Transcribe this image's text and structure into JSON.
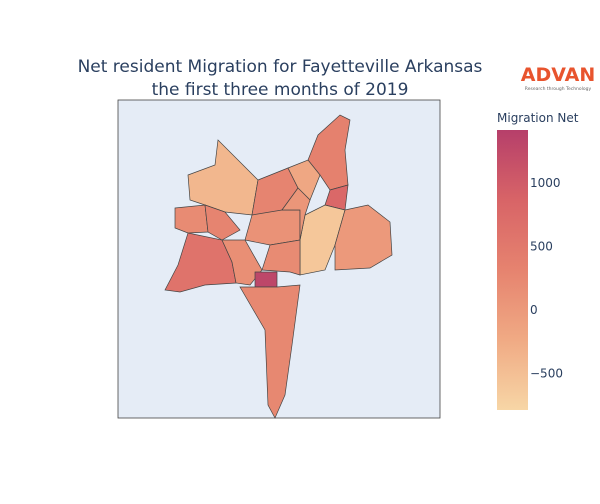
{
  "chart_data": {
    "type": "choropleth",
    "title_lines": [
      "Net resident Migration for Fayetteville Arkansas",
      "the first three months of 2019"
    ],
    "logo": {
      "name": "ADVAN",
      "tagline": "Research through Technology"
    },
    "colorbar": {
      "title": "Migration Net",
      "zlim": [
        -790,
        1420
      ],
      "ticks": [
        {
          "value": -500,
          "label": "−500"
        },
        0,
        500,
        1000
      ],
      "colorscale": [
        "#f7d6a6",
        "#f0aa84",
        "#e6836f",
        "#d86467",
        "#b63f6a"
      ]
    },
    "values": [
      600,
      200,
      -400,
      300,
      350,
      800,
      100,
      -600,
      0,
      150,
      200,
      1300,
      250,
      300,
      -200,
      50
    ]
  }
}
